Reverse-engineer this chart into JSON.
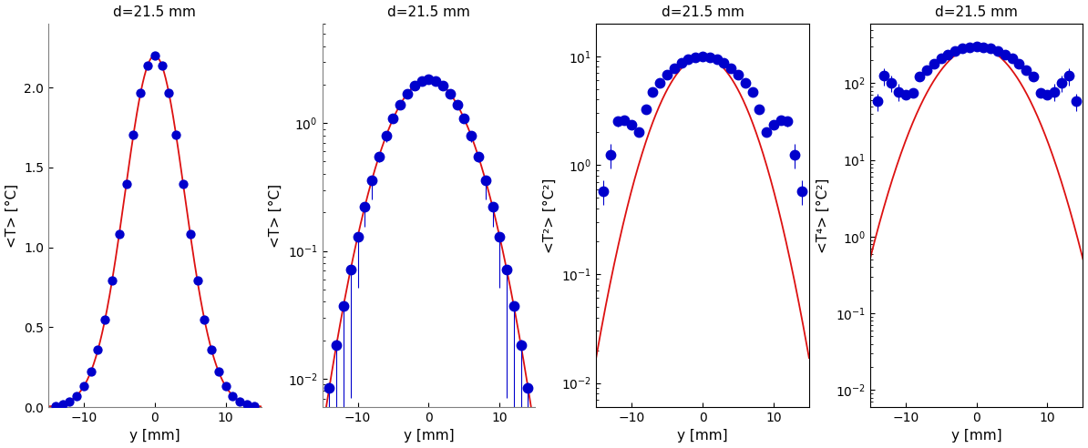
{
  "title": "d=21.5 mm",
  "xlabel": "y [mm]",
  "dot_color": "#0000cc",
  "line_color": "#dd1111",
  "dot_size": 55,
  "line_width": 1.3,
  "y_positions": [
    -14,
    -13,
    -12,
    -11,
    -10,
    -9,
    -8,
    -7,
    -6,
    -5,
    -4,
    -3,
    -2,
    -1,
    0,
    1,
    2,
    3,
    4,
    5,
    6,
    7,
    8,
    9,
    10,
    11,
    12,
    13,
    14
  ],
  "panel1_ylabel": "<T> [°C]",
  "panel1_ylim": [
    0,
    2.4
  ],
  "panel2_ylabel": "<T> [°C]",
  "panel2_ylim": [
    0.006,
    6.0
  ],
  "panel3_ylabel": "<T²> [°C²]",
  "panel3_ylim": [
    0.006,
    20.0
  ],
  "panel4_ylabel": "<T⁴> [°C²]",
  "panel4_ylim": [
    0.006,
    600.0
  ],
  "xlim": [
    -15,
    15
  ],
  "sigma": 4.2,
  "T0": 2.2
}
